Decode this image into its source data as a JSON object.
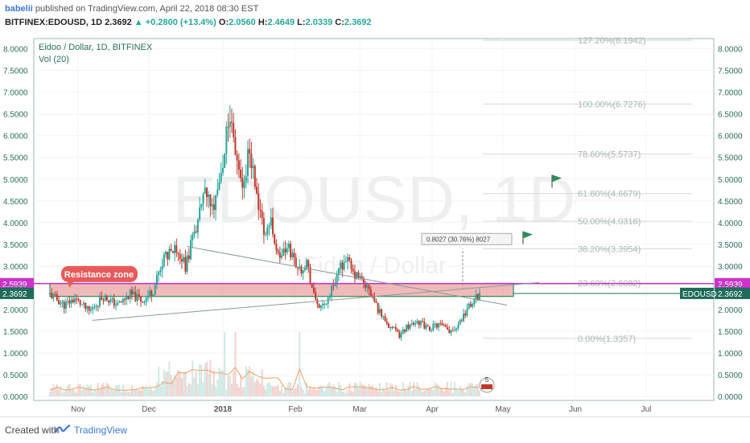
{
  "header": {
    "author": "babelii",
    "published": "published on TradingView.com, April 22, 2018 08:30 EST",
    "symbol_line": "BITFINEX:EDOUSD, 1D",
    "last": "2.3692",
    "change": "+0.2800 (+13.4%)",
    "o_label": "O:",
    "o_value": "2.0560",
    "h_label": "H:",
    "h_value": "2.4649",
    "l_label": "L:",
    "l_value": "2.0339",
    "c_label": "C:",
    "c_value": "2.3692"
  },
  "footer": {
    "created_with": "Created with",
    "brand": "TradingView"
  },
  "chart_data": {
    "type": "candlestick",
    "legend_title": "Eidoo / Dollar, 1D, BITFINEX",
    "legend_indicator": "Vol (20)",
    "watermark_symbol": "EDOUSD, 1D",
    "watermark_name": "Eidoo / Dollar",
    "ylim": [
      0,
      8.2
    ],
    "y_ticks": [
      "8.0000",
      "7.5000",
      "7.0000",
      "6.5000",
      "6.0000",
      "5.5000",
      "5.0000",
      "4.5000",
      "4.0000",
      "3.5000",
      "3.0000",
      "2.5000",
      "2.0000",
      "1.5000",
      "1.0000",
      "0.5000",
      "0.0000"
    ],
    "x_ticks": [
      "Nov",
      "Dec",
      "2018",
      "Feb",
      "Mar",
      "Apr",
      "May",
      "Jun",
      "Jul"
    ],
    "price_markers": [
      {
        "value": 2.5939,
        "label": "2.5939",
        "color": "#cc33cc"
      },
      {
        "value": 2.3692,
        "label": "2.3692",
        "color": "#1f6b5a"
      }
    ],
    "symbol_tag": "EDOUSD",
    "fib_levels": [
      {
        "value": 8.1942,
        "label": "127.20%(8.1942)"
      },
      {
        "value": 6.7276,
        "label": "100.00%(6.7276)"
      },
      {
        "value": 5.5737,
        "label": "78.60%(5.5737)"
      },
      {
        "value": 4.6679,
        "label": "61.80%(4.6679)"
      },
      {
        "value": 4.0316,
        "label": "50.00%(4.0316)"
      },
      {
        "value": 3.3954,
        "label": "38.20%(3.3954)"
      },
      {
        "value": 2.6082,
        "label": "23.60%(2.6082)"
      },
      {
        "value": 1.3357,
        "label": "0.00%(1.3357)"
      }
    ],
    "annotations": {
      "resistance_label": "Resistance zone",
      "resistance_zone": [
        2.3,
        2.6
      ],
      "measure_label": "0.8027 (30.76%) 8027",
      "badge": "5"
    },
    "colors": {
      "up": "#26a69a",
      "down": "#c0392b",
      "resistance": "#e06666",
      "magenta": "#cc33cc",
      "volume_ma": "#f0a060",
      "axis_text": "#2a6f5f"
    }
  }
}
